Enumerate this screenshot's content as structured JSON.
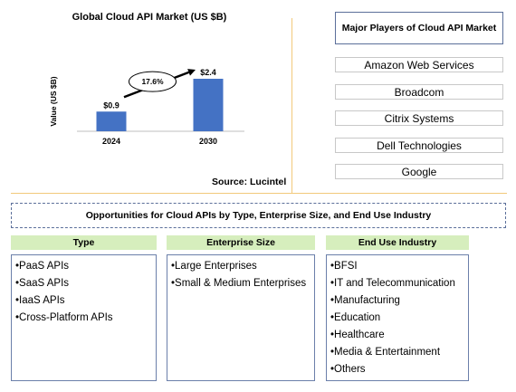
{
  "chart_data": {
    "type": "bar",
    "title": "Global Cloud API Market (US $B)",
    "ylabel": "Value (US $B)",
    "categories": [
      "2024",
      "2030"
    ],
    "values": [
      0.9,
      2.4
    ],
    "value_labels": [
      "$0.9",
      "$2.4"
    ],
    "ylim": [
      0,
      2.4
    ],
    "bar_color": "#4472c4",
    "growth_label": "17.6%",
    "grid": false
  },
  "source": "Source: Lucintel",
  "players": {
    "title": "Major Players of Cloud API Market",
    "items": [
      "Amazon Web Services",
      "Broadcom",
      "Citrix Systems",
      "Dell Technologies",
      "Google"
    ]
  },
  "opportunities": {
    "title": "Opportunities for Cloud APIs by Type, Enterprise Size, and End Use Industry",
    "columns": [
      {
        "header": "Type",
        "items": [
          "PaaS APIs",
          "SaaS APIs",
          "IaaS APIs",
          "Cross-Platform APIs"
        ]
      },
      {
        "header": "Enterprise Size",
        "items": [
          "Large Enterprises",
          "Small & Medium Enterprises"
        ]
      },
      {
        "header": "End Use Industry",
        "items": [
          "BFSI",
          "IT and Telecommunication",
          "Manufacturing",
          "Education",
          "Healthcare",
          "Media & Entertainment",
          "Others"
        ]
      }
    ]
  },
  "colors": {
    "header_fill": "#d6eebd",
    "border_blue": "#5b6f9a",
    "divider": "#f2c97a"
  }
}
